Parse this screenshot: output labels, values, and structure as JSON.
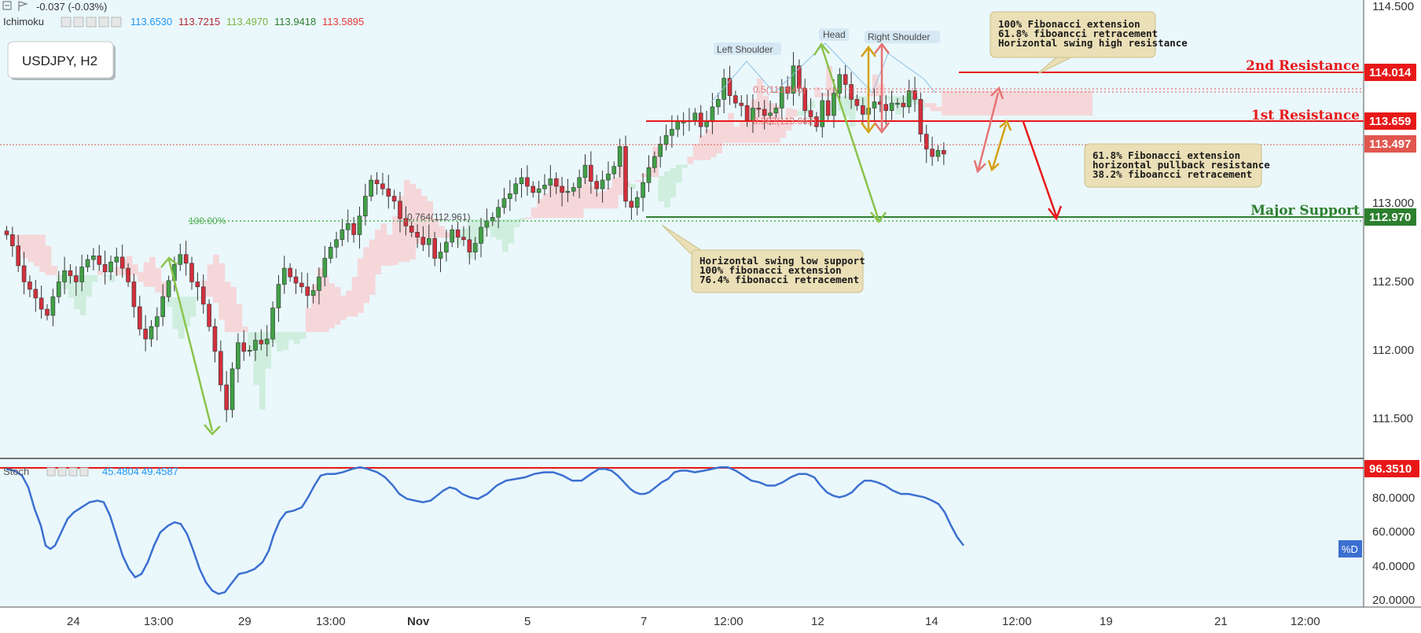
{
  "header": {
    "change": "-0.037 (-0.03%)",
    "indicator_name": "Ichimoku",
    "indicator_values": [
      {
        "v": "113.6530",
        "color": "#2196f3"
      },
      {
        "v": "113.7215",
        "color": "#b22833"
      },
      {
        "v": "113.4970",
        "color": "#7cb342"
      },
      {
        "v": "113.9418",
        "color": "#2e7d32"
      },
      {
        "v": "113.5895",
        "color": "#e53935"
      }
    ],
    "symbol_box": "USDJPY, H2"
  },
  "stoch": {
    "name": "Stoch",
    "values": [
      "45.4804",
      "49.4587"
    ],
    "label": "%D",
    "level_label": "96.3510",
    "level": 96.351,
    "color": "#3c6fd0",
    "curve": [
      [
        0,
        96
      ],
      [
        10,
        95
      ],
      [
        20,
        92
      ],
      [
        28,
        85
      ],
      [
        36,
        72
      ],
      [
        44,
        62
      ],
      [
        50,
        50
      ],
      [
        56,
        48
      ],
      [
        62,
        50
      ],
      [
        70,
        58
      ],
      [
        78,
        66
      ],
      [
        86,
        70
      ],
      [
        96,
        73
      ],
      [
        106,
        76
      ],
      [
        116,
        77
      ],
      [
        124,
        76
      ],
      [
        132,
        68
      ],
      [
        140,
        56
      ],
      [
        148,
        44
      ],
      [
        156,
        36
      ],
      [
        164,
        31
      ],
      [
        172,
        33
      ],
      [
        180,
        40
      ],
      [
        188,
        50
      ],
      [
        196,
        58
      ],
      [
        206,
        62
      ],
      [
        214,
        64
      ],
      [
        222,
        63
      ],
      [
        230,
        57
      ],
      [
        238,
        47
      ],
      [
        246,
        36
      ],
      [
        254,
        28
      ],
      [
        262,
        23
      ],
      [
        270,
        21
      ],
      [
        278,
        22
      ],
      [
        286,
        27
      ],
      [
        296,
        33
      ],
      [
        306,
        34
      ],
      [
        316,
        36
      ],
      [
        326,
        40
      ],
      [
        334,
        47
      ],
      [
        340,
        56
      ],
      [
        348,
        65
      ],
      [
        356,
        70
      ],
      [
        366,
        71
      ],
      [
        376,
        73
      ],
      [
        384,
        79
      ],
      [
        392,
        86
      ],
      [
        400,
        92
      ],
      [
        408,
        93
      ],
      [
        418,
        93
      ],
      [
        428,
        94
      ],
      [
        440,
        96
      ],
      [
        450,
        97
      ],
      [
        460,
        96
      ],
      [
        472,
        94
      ],
      [
        482,
        91
      ],
      [
        492,
        86
      ],
      [
        500,
        81
      ],
      [
        510,
        78
      ],
      [
        520,
        77
      ],
      [
        530,
        76
      ],
      [
        540,
        77
      ],
      [
        548,
        80
      ],
      [
        556,
        83
      ],
      [
        564,
        85
      ],
      [
        572,
        84
      ],
      [
        580,
        81
      ],
      [
        590,
        79
      ],
      [
        600,
        78
      ],
      [
        612,
        81
      ],
      [
        624,
        86
      ],
      [
        636,
        89
      ],
      [
        648,
        90
      ],
      [
        660,
        91
      ],
      [
        672,
        93
      ],
      [
        684,
        94
      ],
      [
        696,
        94
      ],
      [
        708,
        92
      ],
      [
        720,
        89
      ],
      [
        732,
        89
      ],
      [
        744,
        93
      ],
      [
        754,
        96
      ],
      [
        762,
        96
      ],
      [
        770,
        95
      ],
      [
        778,
        92
      ],
      [
        786,
        88
      ],
      [
        794,
        84
      ],
      [
        800,
        82
      ],
      [
        806,
        81
      ],
      [
        812,
        81
      ],
      [
        818,
        82
      ],
      [
        826,
        85
      ],
      [
        834,
        88
      ],
      [
        842,
        90
      ],
      [
        850,
        94
      ],
      [
        858,
        95
      ],
      [
        866,
        95
      ],
      [
        876,
        94
      ],
      [
        888,
        95
      ],
      [
        898,
        96
      ],
      [
        908,
        97
      ],
      [
        918,
        97
      ],
      [
        928,
        95
      ],
      [
        938,
        92
      ],
      [
        948,
        89
      ],
      [
        958,
        88
      ],
      [
        968,
        86
      ],
      [
        978,
        86
      ],
      [
        988,
        88
      ],
      [
        998,
        91
      ],
      [
        1008,
        93
      ],
      [
        1018,
        93
      ],
      [
        1028,
        91
      ],
      [
        1036,
        86
      ],
      [
        1044,
        82
      ],
      [
        1052,
        80
      ],
      [
        1060,
        79
      ],
      [
        1068,
        80
      ],
      [
        1076,
        82
      ],
      [
        1084,
        86
      ],
      [
        1092,
        89
      ],
      [
        1100,
        89
      ],
      [
        1108,
        88
      ],
      [
        1118,
        86
      ],
      [
        1128,
        83
      ],
      [
        1138,
        81
      ],
      [
        1148,
        81
      ],
      [
        1158,
        80
      ],
      [
        1168,
        79
      ],
      [
        1178,
        77
      ],
      [
        1186,
        75
      ],
      [
        1194,
        70
      ],
      [
        1202,
        62
      ],
      [
        1210,
        55
      ],
      [
        1218,
        50
      ]
    ]
  },
  "y_axis_ticks": [
    "114.500",
    "114.000",
    "113.500",
    "113.000",
    "112.500",
    "112.000",
    "111.500"
  ],
  "stoch_ticks": [
    "80.0000",
    "60.0000",
    "40.0000",
    "20.0000"
  ],
  "x_axis_ticks": [
    "24",
    "13:00",
    "29",
    "13:00",
    "Nov",
    "5",
    "7",
    "12:00",
    "12",
    "14",
    "12:00",
    "19",
    "21",
    "12:00"
  ],
  "levels": [
    {
      "name": "2nd Resistance",
      "value": "114.014",
      "color": "#e81818"
    },
    {
      "name": "1st Resistance",
      "value": "113.659",
      "color": "#e81818"
    },
    {
      "name": "",
      "value": "113.497",
      "color": "#e0574f"
    },
    {
      "name": "Major Support",
      "value": "112.970",
      "color": "#2d7f2e"
    }
  ],
  "pattern_labels": [
    "Left Shoulder",
    "Head",
    "Right Shoulder"
  ],
  "fib_labels": [
    {
      "text": "100.00%",
      "color": "#4caf50"
    },
    {
      "text": "0.764(112.961)",
      "color": "#4a4a4a"
    },
    {
      "text": "0.382(113.662)",
      "color": "#e57373"
    },
    {
      "text": "0.5(113.840)",
      "color": "#e57373"
    }
  ],
  "annotations": [
    [
      "100% Fibonacci extension",
      "61.8% fiboancci retracement",
      "Horizontal swing high resistance"
    ],
    [
      "61.8% Fibonacci extension",
      "horizontal pullback resistance",
      "38.2% fiboancci retracement"
    ],
    [
      "Horizontal swing low support",
      "100% fibonacci extension",
      "76.4% fibonacci retracement"
    ]
  ],
  "colors": {
    "background": "#eaf8fc",
    "candle_up": "#41a046",
    "candle_down": "#d2303d",
    "cloud_green": "#cfeede",
    "cloud_red": "#f5d7da",
    "annotation_bg": "#eadfb6",
    "annotation_border": "#cdbf8a"
  },
  "chart_data": {
    "type": "candlestick",
    "symbol": "USDJPY",
    "timeframe": "H2",
    "y_range": [
      111.29,
      114.66
    ],
    "closes": [
      112.82,
      112.73,
      112.57,
      112.44,
      112.38,
      112.31,
      112.22,
      112.17,
      112.32,
      112.44,
      112.53,
      112.49,
      112.44,
      112.56,
      112.62,
      112.65,
      112.58,
      112.52,
      112.6,
      112.64,
      112.55,
      112.44,
      112.24,
      112.06,
      111.98,
      112.08,
      112.16,
      112.32,
      112.45,
      112.58,
      112.66,
      112.59,
      112.44,
      112.4,
      112.26,
      112.08,
      111.88,
      111.61,
      111.41,
      111.74,
      111.95,
      111.88,
      111.89,
      111.97,
      111.94,
      111.98,
      112.23,
      112.42,
      112.55,
      112.48,
      112.43,
      112.4,
      112.33,
      112.37,
      112.48,
      112.63,
      112.72,
      112.78,
      112.86,
      112.91,
      112.82,
      112.97,
      113.13,
      113.26,
      113.23,
      113.19,
      113.13,
      113.09,
      112.95,
      112.89,
      112.84,
      112.8,
      112.74,
      112.79,
      112.63,
      112.68,
      112.76,
      112.86,
      112.8,
      112.78,
      112.68,
      112.75,
      112.88,
      112.93,
      112.96,
      113.04,
      113.11,
      113.15,
      113.23,
      113.28,
      113.21,
      113.16,
      113.19,
      113.22,
      113.27,
      113.21,
      113.16,
      113.17,
      113.2,
      113.28,
      113.38,
      113.25,
      113.19,
      113.26,
      113.31,
      113.37,
      113.53,
      113.09,
      113.04,
      113.12,
      113.24,
      113.36,
      113.45,
      113.55,
      113.62,
      113.67,
      113.73,
      113.73,
      113.74,
      113.8,
      113.69,
      113.73,
      113.85,
      113.91,
      114.08,
      113.94,
      113.88,
      113.86,
      113.74,
      113.84,
      113.83,
      113.78,
      113.8,
      113.84,
      114.01,
      113.96,
      114.18,
      114.0,
      113.82,
      113.77,
      113.69,
      113.9,
      113.78,
      113.96,
      114.11,
      114.03,
      113.91,
      113.86,
      113.79,
      113.84,
      113.89,
      113.87,
      113.82,
      113.88,
      113.88,
      113.85,
      113.98,
      113.91,
      113.63,
      113.51,
      113.45,
      113.5,
      113.47
    ],
    "ichimoku_values": [
      "113.6530",
      "113.7215",
      "113.4970",
      "113.9418",
      "113.5895"
    ],
    "levels": [
      {
        "name": "2nd Resistance",
        "value": 114.014
      },
      {
        "name": "1st Resistance",
        "value": 113.659
      },
      {
        "name": "",
        "value": 113.497
      },
      {
        "name": "Major Support",
        "value": 112.97
      }
    ],
    "stochastic": {
      "values": [
        45.4804,
        49.4587
      ],
      "level": 96.351,
      "range": [
        15,
        99
      ]
    }
  }
}
